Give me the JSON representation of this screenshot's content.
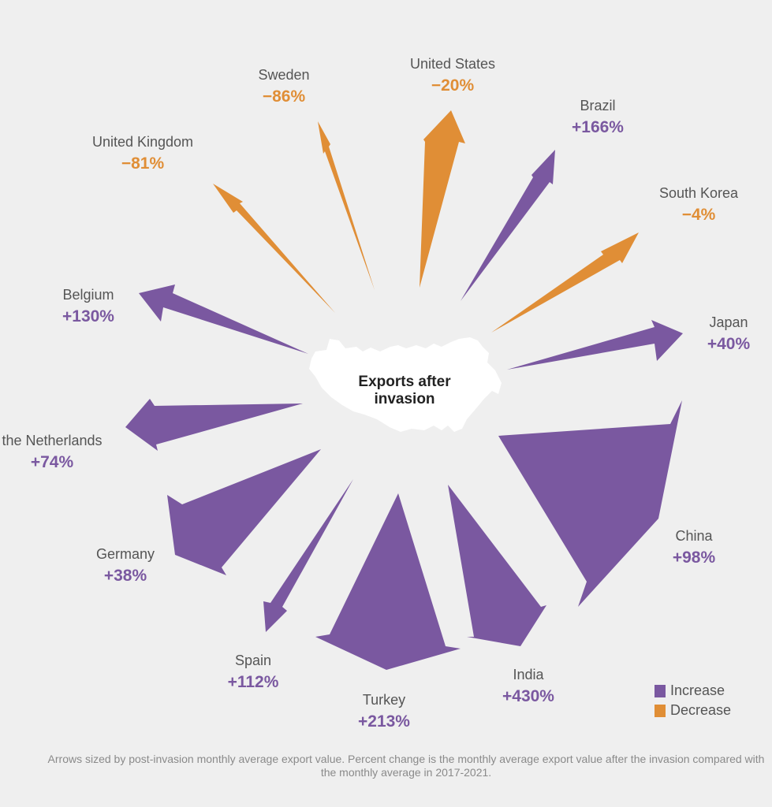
{
  "chart_data": {
    "type": "arrow-radial",
    "center_label": [
      "Exports after",
      "invasion"
    ],
    "colors": {
      "increase": "#7a58a0",
      "decrease": "#e08e36",
      "map": "#ffffff"
    },
    "legend": [
      {
        "label": "Increase",
        "key": "increase"
      },
      {
        "label": "Decrease",
        "key": "decrease"
      }
    ],
    "note": "Arrows sized by post-invasion monthly average export value. Percent change is the monthly average export value after the invasion compared with the monthly average in 2017-2021.",
    "countries": [
      {
        "name": "United States",
        "change": "−20%",
        "value": -20,
        "direction": "decrease"
      },
      {
        "name": "Brazil",
        "change": "+166%",
        "value": 166,
        "direction": "increase"
      },
      {
        "name": "South Korea",
        "change": "−4%",
        "value": -4,
        "direction": "decrease"
      },
      {
        "name": "Japan",
        "change": "+40%",
        "value": 40,
        "direction": "increase"
      },
      {
        "name": "China",
        "change": "+98%",
        "value": 98,
        "direction": "increase"
      },
      {
        "name": "India",
        "change": "+430%",
        "value": 430,
        "direction": "increase"
      },
      {
        "name": "Turkey",
        "change": "+213%",
        "value": 213,
        "direction": "increase"
      },
      {
        "name": "Spain",
        "change": "+112%",
        "value": 112,
        "direction": "increase"
      },
      {
        "name": "Germany",
        "change": "+38%",
        "value": 38,
        "direction": "increase"
      },
      {
        "name": "the Netherlands",
        "change": "+74%",
        "value": 74,
        "direction": "increase"
      },
      {
        "name": "Belgium",
        "change": "+130%",
        "value": 130,
        "direction": "increase"
      },
      {
        "name": "United Kingdom",
        "change": "−81%",
        "value": -81,
        "direction": "decrease"
      },
      {
        "name": "Sweden",
        "change": "−86%",
        "value": -86,
        "direction": "decrease"
      }
    ]
  }
}
